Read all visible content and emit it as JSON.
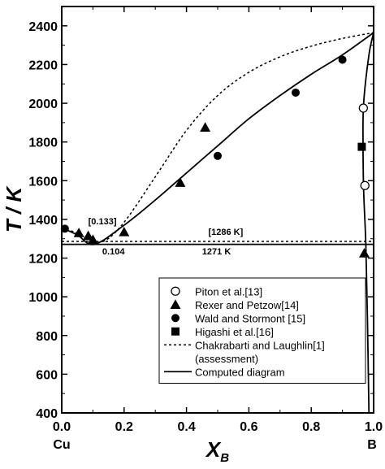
{
  "chart_data": {
    "type": "scatter",
    "xlabel": "X",
    "xlabel_sub": "B",
    "ylabel": "T / K",
    "xlim": [
      0.0,
      1.0
    ],
    "ylim": [
      400,
      2500
    ],
    "xticks": [
      "0.0",
      "0.2",
      "0.4",
      "0.6",
      "0.8",
      "1.0"
    ],
    "yticks": [
      "400",
      "600",
      "800",
      "1000",
      "1200",
      "1400",
      "1600",
      "1800",
      "2000",
      "2200",
      "2400"
    ],
    "x_end_labels": {
      "left": "Cu",
      "right": "B"
    },
    "annotations": [
      {
        "text": "[0.133]",
        "x": 0.085,
        "y": 1375
      },
      {
        "text": "[1286 K]",
        "x": 0.47,
        "y": 1320
      },
      {
        "text": "0.104",
        "x": 0.13,
        "y": 1220
      },
      {
        "text": "1271 K",
        "x": 0.45,
        "y": 1220
      }
    ],
    "legend_position": "bottom-right",
    "series": [
      {
        "name": "Piton et al.[13]",
        "kind": "points",
        "marker": "open-circle",
        "points": [
          [
            0.967,
            1975
          ],
          [
            0.972,
            1575
          ]
        ]
      },
      {
        "name": "Rexer and Petzow[14]",
        "kind": "points",
        "marker": "triangle",
        "points": [
          [
            0.055,
            1330
          ],
          [
            0.085,
            1315
          ],
          [
            0.1,
            1295
          ],
          [
            0.2,
            1335
          ],
          [
            0.38,
            1590
          ],
          [
            0.46,
            1875
          ],
          [
            0.97,
            1225
          ]
        ]
      },
      {
        "name": "Wald and Stormont [15]",
        "kind": "points",
        "marker": "filled-circle",
        "points": [
          [
            0.01,
            1352
          ],
          [
            0.5,
            1728
          ],
          [
            0.75,
            2055
          ],
          [
            0.9,
            2225
          ]
        ]
      },
      {
        "name": "Higashi et al.[16]",
        "kind": "points",
        "marker": "square",
        "points": [
          [
            0.962,
            1775
          ]
        ]
      },
      {
        "name": "Chakrabarti and Laughlin[1] (assessment)",
        "legend_lines": [
          "Chakrabarti and Laughlin[1]",
          "(assessment)"
        ],
        "kind": "line",
        "style": "dotted",
        "segments": [
          [
            [
              0.0,
              1357
            ],
            [
              0.04,
              1335
            ],
            [
              0.08,
              1305
            ],
            [
              0.133,
              1286
            ],
            [
              0.2,
              1385
            ],
            [
              0.3,
              1620
            ],
            [
              0.4,
              1860
            ],
            [
              0.5,
              2040
            ],
            [
              0.6,
              2160
            ],
            [
              0.7,
              2240
            ],
            [
              0.8,
              2295
            ],
            [
              0.9,
              2335
            ],
            [
              1.0,
              2365
            ]
          ],
          [
            [
              0.0,
              1286
            ],
            [
              1.0,
              1286
            ]
          ]
        ]
      },
      {
        "name": "Computed diagram",
        "kind": "line",
        "style": "solid",
        "segments": [
          [
            [
              0.0,
              1357
            ],
            [
              0.05,
              1320
            ],
            [
              0.104,
              1271
            ],
            [
              0.2,
              1370
            ],
            [
              0.3,
              1500
            ],
            [
              0.4,
              1640
            ],
            [
              0.5,
              1780
            ],
            [
              0.6,
              1920
            ],
            [
              0.7,
              2040
            ],
            [
              0.8,
              2150
            ],
            [
              0.9,
              2250
            ],
            [
              1.0,
              2365
            ]
          ],
          [
            [
              0.0,
              1271
            ],
            [
              1.0,
              1271
            ]
          ],
          [
            [
              0.985,
              400
            ],
            [
              0.98,
              900
            ],
            [
              0.975,
              1271
            ],
            [
              0.968,
              1550
            ],
            [
              0.966,
              1800
            ],
            [
              0.968,
              2000
            ],
            [
              0.985,
              2250
            ],
            [
              1.0,
              2365
            ]
          ]
        ]
      }
    ]
  }
}
